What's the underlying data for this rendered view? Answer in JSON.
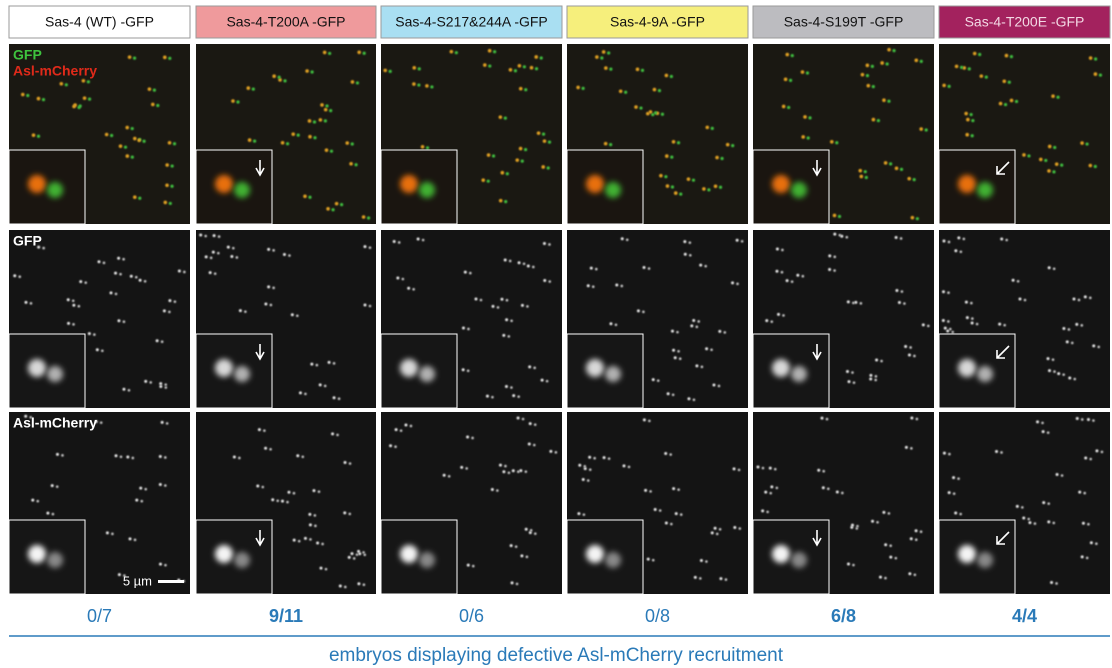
{
  "headers": [
    "Sas-4 (WT) -GFP",
    "Sas-4-T200A -GFP",
    "Sas-4-S217&244A -GFP",
    "Sas-4-9A -GFP",
    "Sas-4-S199T -GFP",
    "Sas-4-T200E -GFP"
  ],
  "panel_labels": [
    [
      "GFP",
      "Asl-mCherry"
    ],
    [
      "GFP"
    ],
    [
      "Asl-mCherry"
    ]
  ],
  "scale_bar": "5 µm",
  "counts": [
    {
      "text": "0/7",
      "bold": false
    },
    {
      "text": "9/11",
      "bold": true
    },
    {
      "text": "0/6",
      "bold": false
    },
    {
      "text": "0/8",
      "bold": false
    },
    {
      "text": "6/8",
      "bold": true
    },
    {
      "text": "4/4",
      "bold": true
    }
  ],
  "caption": "embryos displaying defective Asl-mCherry recruitment"
}
